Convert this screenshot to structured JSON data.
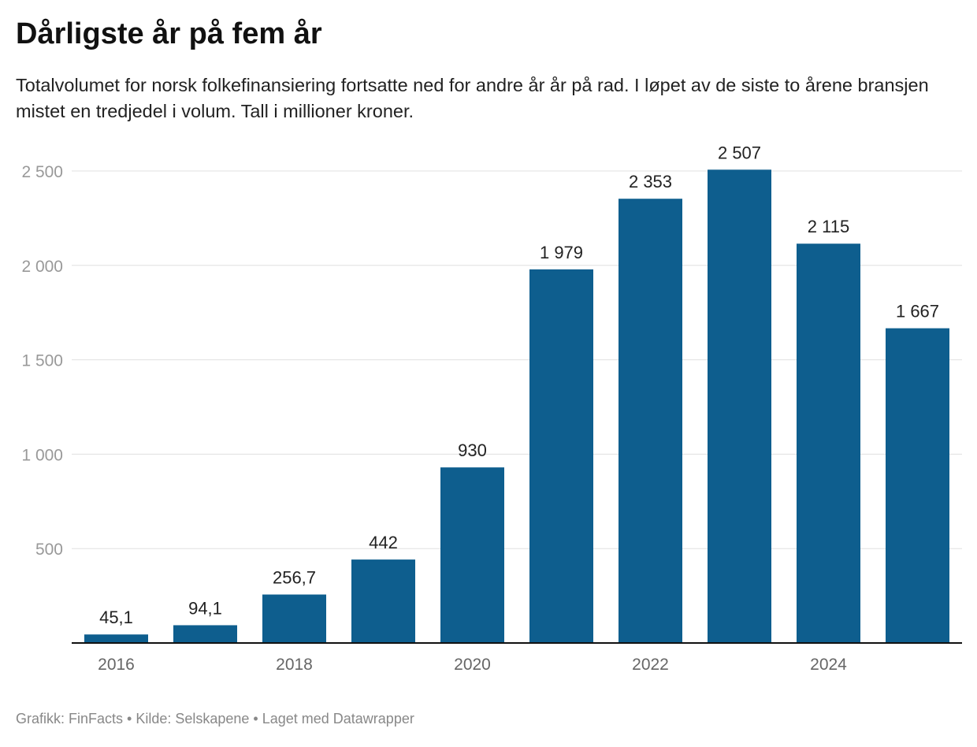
{
  "title": "Dårligste år på fem år",
  "subtitle": "Totalvolumet for norsk folkefinansiering fortsatte ned for andre år år på rad. I løpet av de siste to årene bransjen mistet en tredjedel i volum. Tall i millioner kroner.",
  "footer": "Grafikk: FinFacts • Kilde: Selskapene • Laget med Datawrapper",
  "chart_data": {
    "type": "bar",
    "title": "Dårligste år på fem år",
    "categories": [
      "2016",
      "2017",
      "2018",
      "2019",
      "2020",
      "2021",
      "2022",
      "2023",
      "2024",
      "2025"
    ],
    "values": [
      45.1,
      94.1,
      256.7,
      442,
      930,
      1979,
      2353,
      2507,
      2115,
      1667
    ],
    "value_labels": [
      "45,1",
      "94,1",
      "256,7",
      "442",
      "930",
      "1 979",
      "2 353",
      "2 507",
      "2 115",
      "1 667"
    ],
    "x_tick_labels": [
      "2016",
      "2018",
      "2020",
      "2022",
      "2024"
    ],
    "y_ticks": [
      500,
      1000,
      1500,
      2000,
      2500
    ],
    "y_tick_labels": [
      "500",
      "1 000",
      "1 500",
      "2 000",
      "2 500"
    ],
    "ylim": [
      0,
      2500
    ],
    "grid": true,
    "xlabel": "",
    "ylabel": "",
    "colors": {
      "bar": "#0e5e8e",
      "grid": "#e0e0e0",
      "axis": "#111111",
      "tick_text": "#999999",
      "label_text": "#222222"
    }
  }
}
